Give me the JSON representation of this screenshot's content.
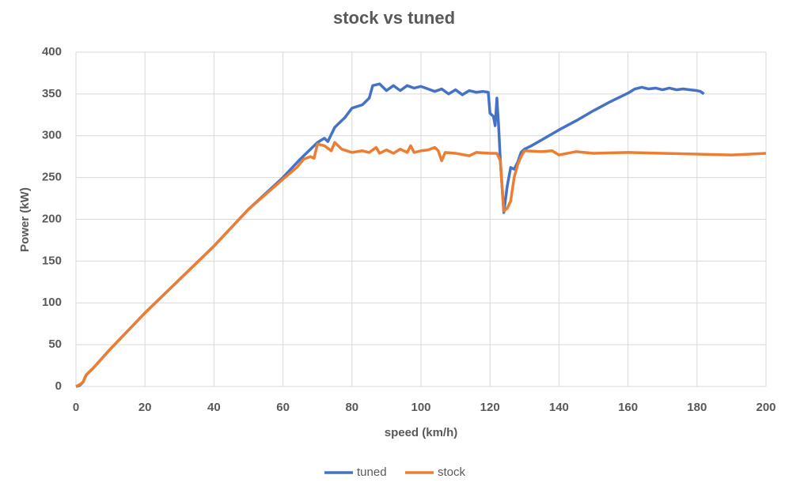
{
  "chart_data": {
    "type": "line",
    "title": "stock vs tuned",
    "x_label": "speed (km/h)",
    "y_label": "Power (kW)",
    "xlim": [
      0,
      200
    ],
    "xticks": [
      0,
      20,
      40,
      60,
      80,
      100,
      120,
      140,
      160,
      180,
      200
    ],
    "ylim": [
      0,
      400
    ],
    "yticks": [
      0,
      50,
      100,
      150,
      200,
      250,
      300,
      350,
      400
    ],
    "grid": true,
    "legend": "bottom",
    "series": [
      {
        "name": "tuned",
        "color": "#4472c4",
        "x": [
          0,
          1,
          2,
          3,
          5,
          10,
          20,
          30,
          40,
          50,
          60,
          65,
          70,
          72,
          73,
          75,
          78,
          80,
          83,
          85,
          86,
          88,
          90,
          92,
          94,
          96,
          98,
          100,
          102,
          104,
          106,
          108,
          110,
          112,
          114,
          116,
          118,
          119.5,
          120,
          121,
          121.5,
          122,
          122.5,
          123,
          124,
          125,
          126,
          127,
          128,
          129,
          130,
          132,
          135,
          140,
          145,
          150,
          155,
          160,
          162,
          164,
          166,
          168,
          170,
          172,
          174,
          176,
          178,
          180,
          181,
          182
        ],
        "values": [
          0,
          1,
          5,
          14,
          22,
          45,
          88,
          128,
          168,
          212,
          250,
          272,
          292,
          297,
          293,
          310,
          322,
          333,
          337,
          345,
          360,
          362,
          354,
          360,
          354,
          360,
          357,
          359,
          356,
          353,
          356,
          350,
          355,
          349,
          354,
          352,
          353,
          352,
          327,
          323,
          312,
          345,
          312,
          270,
          208,
          240,
          262,
          260,
          268,
          280,
          284,
          288,
          295,
          307,
          318,
          330,
          341,
          351,
          356,
          358,
          356,
          357,
          355,
          357,
          355,
          356,
          355,
          354,
          353,
          350
        ]
      },
      {
        "name": "stock",
        "color": "#ed7d31",
        "x": [
          0,
          1,
          2,
          3,
          5,
          10,
          20,
          30,
          40,
          50,
          60,
          64,
          66,
          68,
          69,
          70,
          72,
          74,
          75,
          77,
          80,
          83,
          85,
          87,
          88,
          90,
          92,
          94,
          96,
          97,
          98,
          100,
          102,
          104,
          105,
          106,
          107,
          110,
          114,
          116,
          120,
          122,
          123,
          124,
          125,
          126,
          127,
          128,
          129,
          130,
          135,
          138,
          140,
          145,
          150,
          160,
          170,
          180,
          190,
          200
        ],
        "values": [
          0,
          2,
          5,
          14,
          22,
          45,
          88,
          128,
          168,
          212,
          248,
          262,
          272,
          275,
          273,
          290,
          288,
          282,
          292,
          284,
          280,
          282,
          280,
          286,
          279,
          283,
          279,
          284,
          280,
          288,
          280,
          282,
          283,
          286,
          282,
          270,
          280,
          279,
          276,
          280,
          279,
          279,
          270,
          210,
          213,
          222,
          250,
          265,
          275,
          282,
          281,
          282,
          277,
          281,
          279,
          280,
          279,
          278,
          277,
          279
        ]
      }
    ]
  }
}
